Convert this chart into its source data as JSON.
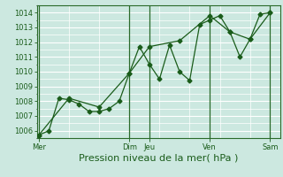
{
  "title": "",
  "xlabel": "Pression niveau de la mer( hPa )",
  "bg_color": "#cce8e0",
  "grid_color": "#ffffff",
  "line_color": "#1a5c1a",
  "ylim": [
    1005.5,
    1014.5
  ],
  "yticks": [
    1006,
    1007,
    1008,
    1009,
    1010,
    1011,
    1012,
    1013,
    1014
  ],
  "x_day_labels": [
    "Mer",
    "Dim",
    "Jeu",
    "Ven",
    "Sam"
  ],
  "x_day_positions": [
    0.0,
    4.5,
    5.5,
    8.5,
    11.5
  ],
  "xlim": [
    -0.1,
    12.0
  ],
  "line1_x": [
    0.0,
    0.5,
    1.0,
    1.5,
    2.0,
    2.5,
    3.0,
    3.5,
    4.0,
    4.5,
    5.0,
    5.5,
    6.0,
    6.5,
    7.0,
    7.5,
    8.0,
    8.5,
    9.0,
    9.5,
    10.0,
    10.5,
    11.0,
    11.5
  ],
  "line1_y": [
    1005.7,
    1006.0,
    1008.2,
    1008.1,
    1007.8,
    1007.3,
    1007.3,
    1007.5,
    1008.0,
    1009.9,
    1011.7,
    1010.5,
    1009.5,
    1011.8,
    1010.0,
    1009.4,
    1013.2,
    1013.5,
    1013.8,
    1012.7,
    1011.0,
    1012.2,
    1013.9,
    1014.0
  ],
  "line2_x": [
    0.0,
    1.5,
    3.0,
    4.5,
    5.5,
    7.0,
    8.5,
    9.5,
    10.5,
    11.5
  ],
  "line2_y": [
    1005.7,
    1008.2,
    1007.6,
    1009.9,
    1011.7,
    1012.1,
    1013.8,
    1012.7,
    1012.2,
    1014.0
  ],
  "vline_positions": [
    0.0,
    4.5,
    5.5,
    8.5,
    11.5
  ],
  "vline_color": "#2a6a2a",
  "ylabel_fontsize": 6,
  "xlabel_fontsize": 8,
  "tick_fontsize": 6
}
